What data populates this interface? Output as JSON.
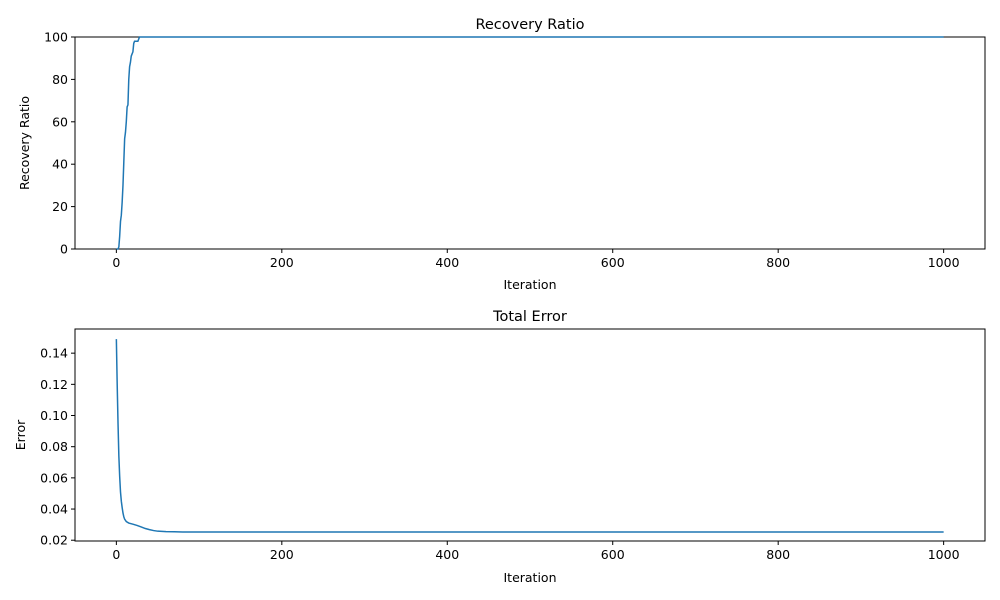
{
  "colors": {
    "line": "#1f77b4",
    "axes": "#000000",
    "background": "#ffffff"
  },
  "chart_data": [
    {
      "type": "line",
      "title": "Recovery Ratio",
      "xlabel": "Iteration",
      "ylabel": "Recovery Ratio",
      "xlim": [
        -50,
        1050
      ],
      "ylim": [
        0,
        100
      ],
      "xticks": [
        0,
        200,
        400,
        600,
        800,
        1000
      ],
      "yticks": [
        0,
        20,
        40,
        60,
        80,
        100
      ],
      "yticklabels": [
        "0",
        "20",
        "40",
        "60",
        "80",
        "100"
      ],
      "grid": false,
      "series": [
        {
          "x": [
            0,
            2,
            3,
            4,
            5,
            6,
            7,
            8,
            9,
            10,
            11,
            12,
            13,
            14,
            15,
            16,
            17,
            18,
            19,
            20,
            21,
            22,
            23,
            24,
            25,
            26,
            27,
            28,
            29,
            30,
            1000
          ],
          "y": [
            0,
            0,
            1,
            6,
            13,
            16,
            22,
            30,
            41,
            52,
            55,
            60,
            67,
            68,
            80,
            86,
            88,
            91,
            92,
            93,
            97,
            98,
            98,
            98,
            98,
            98,
            99,
            100,
            100,
            100,
            100
          ]
        }
      ]
    },
    {
      "type": "line",
      "title": "Total Error",
      "xlabel": "Iteration",
      "ylabel": "Error",
      "xlim": [
        -50,
        1050
      ],
      "ylim": [
        0.0195,
        0.1555
      ],
      "xticks": [
        0,
        200,
        400,
        600,
        800,
        1000
      ],
      "yticks": [
        0.02,
        0.04,
        0.06,
        0.08,
        0.1,
        0.12,
        0.14
      ],
      "yticklabels": [
        "0.02",
        "0.04",
        "0.06",
        "0.08",
        "0.10",
        "0.12",
        "0.14"
      ],
      "grid": false,
      "series": [
        {
          "x": [
            0,
            1,
            2,
            3,
            4,
            5,
            6,
            7,
            8,
            9,
            10,
            12,
            15,
            20,
            25,
            30,
            35,
            40,
            45,
            50,
            60,
            70,
            80,
            100,
            150,
            200,
            400,
            600,
            800,
            1000
          ],
          "y": [
            0.149,
            0.12,
            0.095,
            0.074,
            0.061,
            0.051,
            0.045,
            0.041,
            0.0375,
            0.035,
            0.0335,
            0.032,
            0.031,
            0.0303,
            0.0295,
            0.0285,
            0.0275,
            0.0268,
            0.0262,
            0.0258,
            0.0255,
            0.0254,
            0.0253,
            0.0253,
            0.0253,
            0.0253,
            0.0253,
            0.0253,
            0.0253,
            0.0253
          ]
        }
      ]
    }
  ]
}
